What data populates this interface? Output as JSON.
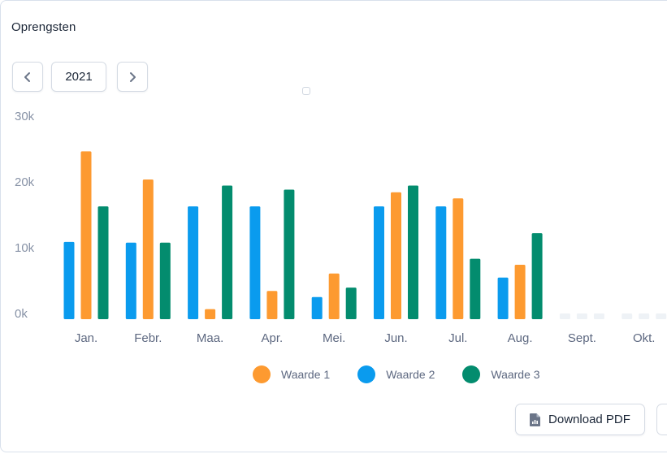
{
  "card": {
    "title": "Oprengsten",
    "year_label": "2021",
    "download_label": "Download PDF"
  },
  "icons": {
    "prev": "chevron-left-icon",
    "next": "chevron-right-icon",
    "download": "file-chart-icon"
  },
  "colors": {
    "series1": "#FD9A30",
    "series2": "#0A9BEE",
    "series3": "#038C6E",
    "empty": "#EEF2F6"
  },
  "chart_data": {
    "type": "bar",
    "categories": [
      "Jan.",
      "Febr.",
      "Maa.",
      "Apr.",
      "Mei.",
      "Jun.",
      "Jul.",
      "Aug.",
      "Sept.",
      "Okt."
    ],
    "y_ticks": [
      "30k",
      "20k",
      "10k",
      "0k"
    ],
    "ylim": [
      0,
      30000
    ],
    "series": [
      {
        "name": "Waarde 2",
        "values": [
          11500,
          11400,
          16800,
          16800,
          3300,
          16800,
          16800,
          6200,
          null,
          null
        ]
      },
      {
        "name": "Waarde 1",
        "values": [
          25000,
          20800,
          1500,
          4200,
          6800,
          18900,
          18000,
          8100,
          null,
          null
        ]
      },
      {
        "name": "Waarde 3",
        "values": [
          16800,
          11400,
          19900,
          19300,
          4700,
          19900,
          9000,
          12800,
          null,
          null
        ]
      }
    ],
    "legend": [
      "Waarde 1",
      "Waarde 2",
      "Waarde 3"
    ],
    "legend_position": "bottom",
    "grid": false
  }
}
